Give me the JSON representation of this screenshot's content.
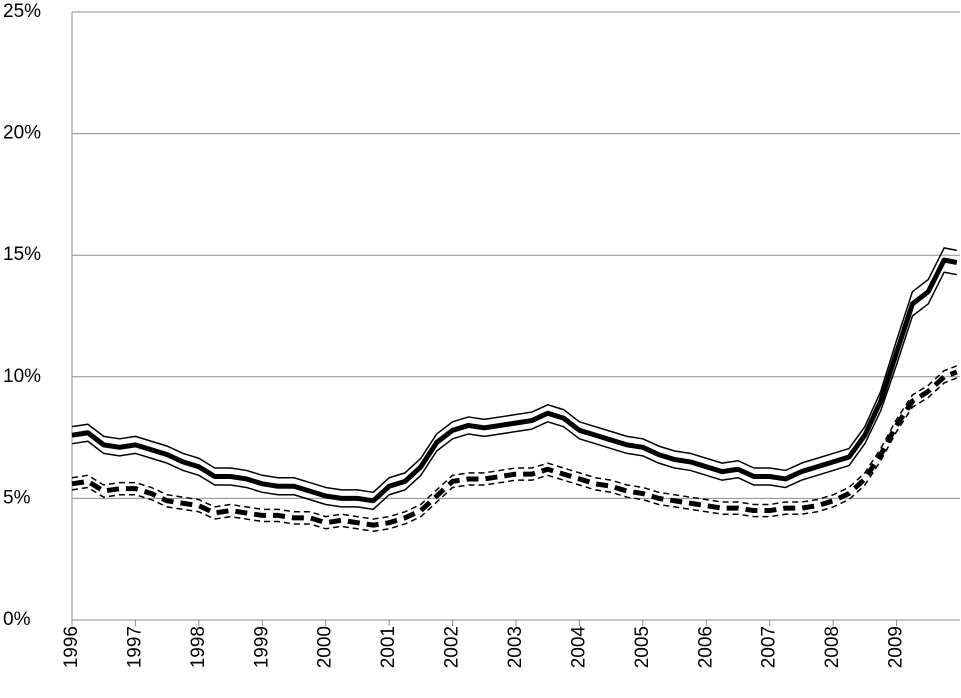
{
  "chart_data": {
    "type": "line",
    "x": [
      1996,
      1996.25,
      1996.5,
      1996.75,
      1997,
      1997.25,
      1997.5,
      1997.75,
      1998,
      1998.25,
      1998.5,
      1998.75,
      1999,
      1999.25,
      1999.5,
      1999.75,
      2000,
      2000.25,
      2000.5,
      2000.75,
      2001,
      2001.25,
      2001.5,
      2001.75,
      2002,
      2002.25,
      2002.5,
      2002.75,
      2003,
      2003.25,
      2003.5,
      2003.75,
      2004,
      2004.25,
      2004.5,
      2004.75,
      2005,
      2005.25,
      2005.5,
      2005.75,
      2006,
      2006.25,
      2006.5,
      2006.75,
      2007,
      2007.25,
      2007.5,
      2007.75,
      2008,
      2008.25,
      2008.5,
      2008.75,
      2009,
      2009.25,
      2009.5,
      2009.75,
      2009.95
    ],
    "series": [
      {
        "color": "#000000",
        "line_width": 1.5,
        "dashed": false,
        "values": [
          7.95,
          8.05,
          7.55,
          7.45,
          7.55,
          7.35,
          7.15,
          6.85,
          6.65,
          6.25,
          6.25,
          6.15,
          5.95,
          5.85,
          5.85,
          5.65,
          5.45,
          5.35,
          5.35,
          5.25,
          5.85,
          6.05,
          6.65,
          7.65,
          8.15,
          8.35,
          8.25,
          8.35,
          8.45,
          8.55,
          8.85,
          8.65,
          8.15,
          7.95,
          7.75,
          7.55,
          7.45,
          7.15,
          6.95,
          6.85,
          6.65,
          6.45,
          6.55,
          6.25,
          6.25,
          6.15,
          6.45,
          6.65,
          6.85,
          7.05,
          7.95,
          9.4,
          11.5,
          13.5,
          14.0,
          15.3,
          15.2
        ]
      },
      {
        "color": "#000000",
        "line_width": 5,
        "dashed": false,
        "values": [
          7.6,
          7.7,
          7.2,
          7.1,
          7.2,
          7.0,
          6.8,
          6.5,
          6.3,
          5.9,
          5.9,
          5.8,
          5.6,
          5.5,
          5.5,
          5.3,
          5.1,
          5.0,
          5.0,
          4.9,
          5.5,
          5.7,
          6.3,
          7.3,
          7.8,
          8.0,
          7.9,
          8.0,
          8.1,
          8.2,
          8.5,
          8.3,
          7.8,
          7.6,
          7.4,
          7.2,
          7.1,
          6.8,
          6.6,
          6.5,
          6.3,
          6.1,
          6.2,
          5.9,
          5.9,
          5.8,
          6.1,
          6.3,
          6.5,
          6.7,
          7.6,
          9.0,
          11.0,
          13.0,
          13.5,
          14.8,
          14.7
        ]
      },
      {
        "color": "#000000",
        "line_width": 1.5,
        "dashed": false,
        "values": [
          7.25,
          7.35,
          6.85,
          6.75,
          6.85,
          6.65,
          6.45,
          6.15,
          5.95,
          5.55,
          5.55,
          5.45,
          5.25,
          5.15,
          5.15,
          4.95,
          4.75,
          4.65,
          4.65,
          4.55,
          5.15,
          5.35,
          5.95,
          6.95,
          7.45,
          7.65,
          7.55,
          7.65,
          7.75,
          7.85,
          8.15,
          7.95,
          7.45,
          7.25,
          7.05,
          6.85,
          6.75,
          6.45,
          6.25,
          6.15,
          5.95,
          5.75,
          5.85,
          5.55,
          5.55,
          5.45,
          5.75,
          5.95,
          6.15,
          6.35,
          7.25,
          8.6,
          10.5,
          12.5,
          13.0,
          14.3,
          14.2
        ]
      },
      {
        "color": "#000000",
        "line_width": 1.5,
        "dashed": true,
        "values": [
          5.85,
          5.95,
          5.55,
          5.65,
          5.65,
          5.45,
          5.15,
          5.05,
          4.95,
          4.65,
          4.75,
          4.65,
          4.55,
          4.55,
          4.45,
          4.45,
          4.25,
          4.35,
          4.25,
          4.15,
          4.25,
          4.45,
          4.75,
          5.35,
          5.95,
          6.05,
          6.05,
          6.15,
          6.25,
          6.25,
          6.45,
          6.25,
          6.05,
          5.85,
          5.75,
          5.55,
          5.45,
          5.25,
          5.15,
          5.05,
          4.95,
          4.85,
          4.85,
          4.75,
          4.75,
          4.85,
          4.85,
          4.95,
          5.15,
          5.45,
          6.05,
          7.05,
          8.25,
          9.25,
          9.65,
          10.25,
          10.45
        ]
      },
      {
        "color": "#000000",
        "line_width": 5,
        "dashed": true,
        "values": [
          5.6,
          5.7,
          5.3,
          5.4,
          5.4,
          5.2,
          4.9,
          4.8,
          4.7,
          4.4,
          4.5,
          4.4,
          4.3,
          4.3,
          4.2,
          4.2,
          4.0,
          4.1,
          4.0,
          3.9,
          4.0,
          4.2,
          4.5,
          5.1,
          5.7,
          5.8,
          5.8,
          5.9,
          6.0,
          6.0,
          6.2,
          6.0,
          5.8,
          5.6,
          5.5,
          5.3,
          5.2,
          5.0,
          4.9,
          4.8,
          4.7,
          4.6,
          4.6,
          4.5,
          4.5,
          4.6,
          4.6,
          4.7,
          4.9,
          5.2,
          5.8,
          6.8,
          8.0,
          9.0,
          9.4,
          10.0,
          10.2
        ]
      },
      {
        "color": "#000000",
        "line_width": 1.5,
        "dashed": true,
        "values": [
          5.35,
          5.45,
          5.05,
          5.15,
          5.15,
          4.95,
          4.65,
          4.55,
          4.45,
          4.15,
          4.25,
          4.15,
          4.05,
          4.05,
          3.95,
          3.95,
          3.75,
          3.85,
          3.75,
          3.65,
          3.75,
          3.95,
          4.25,
          4.85,
          5.45,
          5.55,
          5.55,
          5.65,
          5.75,
          5.75,
          5.95,
          5.75,
          5.55,
          5.35,
          5.25,
          5.05,
          4.95,
          4.75,
          4.65,
          4.55,
          4.45,
          4.35,
          4.35,
          4.25,
          4.25,
          4.35,
          4.35,
          4.45,
          4.65,
          4.95,
          5.55,
          6.55,
          7.75,
          8.75,
          9.15,
          9.75,
          9.95
        ]
      }
    ],
    "xlim": [
      1996,
      2010
    ],
    "xticks": [
      1996,
      1997,
      1998,
      1999,
      2000,
      2001,
      2002,
      2003,
      2004,
      2005,
      2006,
      2007,
      2008,
      2009
    ],
    "ylim": [
      0,
      25
    ],
    "yticks": [
      {
        "value": 0,
        "label": "0%"
      },
      {
        "value": 5,
        "label": "5%"
      },
      {
        "value": 10,
        "label": "10%"
      },
      {
        "value": 15,
        "label": "15%"
      },
      {
        "value": 20,
        "label": "20%"
      },
      {
        "value": 25,
        "label": "25%"
      }
    ],
    "grid": true
  }
}
